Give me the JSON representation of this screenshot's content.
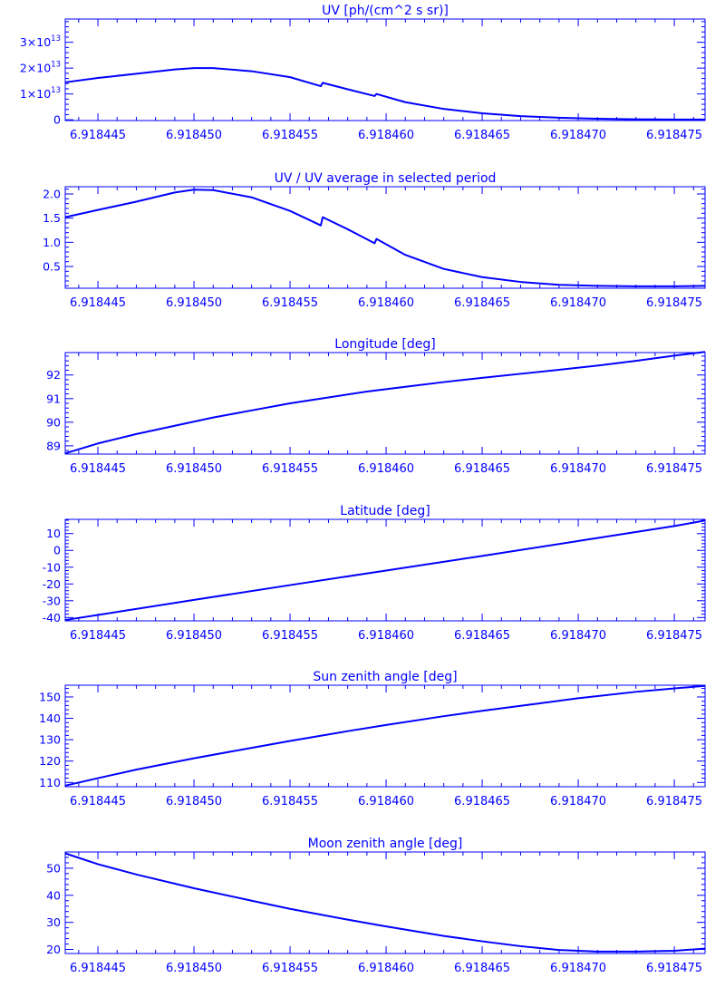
{
  "theme": {
    "color": "#0000ff",
    "background": "#ffffff"
  },
  "x_axis": {
    "range": [
      6.9184433,
      6.9184766
    ],
    "tick_labels": [
      "6.918445",
      "6.918450",
      "6.918455",
      "6.918460",
      "6.918465",
      "6.918470",
      "6.918475"
    ]
  },
  "chart_data": [
    {
      "type": "line",
      "title": "UV [ph/(cm^2 s sr)]",
      "ylim": [
        -300000000000.0,
        39000000000000.0
      ],
      "y_ticks": [
        0,
        10000000000000.0,
        20000000000000.0,
        30000000000000.0
      ],
      "y_tick_labels": [
        {
          "mantissa": "0",
          "exp": ""
        },
        {
          "mantissa": "1×10",
          "exp": "13"
        },
        {
          "mantissa": "2×10",
          "exp": "13"
        },
        {
          "mantissa": "3×10",
          "exp": "13"
        }
      ],
      "series": [
        {
          "x": [
            6.9184433,
            6.918445,
            6.918447,
            6.918449,
            6.91845,
            6.918451,
            6.918453,
            6.918455,
            6.9184566,
            6.9184567,
            6.918458,
            6.9184594,
            6.9184595,
            6.918461,
            6.918463,
            6.918465,
            6.918467,
            6.918469,
            6.918471,
            6.918473,
            6.918475,
            6.9184766
          ],
          "y": [
            14500000000000.0,
            16200000000000.0,
            17800000000000.0,
            19500000000000.0,
            20000000000000.0,
            20000000000000.0,
            18800000000000.0,
            16500000000000.0,
            13000000000000.0,
            14300000000000.0,
            11800000000000.0,
            9200000000000.0,
            10000000000000.0,
            6800000000000.0,
            4200000000000.0,
            2500000000000.0,
            1400000000000.0,
            800000000000.0,
            400000000000.0,
            200000000000.0,
            100000000000.0,
            100000000000.0
          ]
        }
      ],
      "grid": false
    },
    {
      "type": "line",
      "title": "UV / UV average in selected period",
      "ylim": [
        0.05,
        2.15
      ],
      "y_ticks": [
        0.5,
        1.0,
        1.5,
        2.0
      ],
      "y_tick_labels": [
        "0.5",
        "1.0",
        "1.5",
        "2.0"
      ],
      "series": [
        {
          "x": [
            6.9184433,
            6.918445,
            6.918447,
            6.918449,
            6.91845,
            6.918451,
            6.918453,
            6.918455,
            6.9184566,
            6.9184567,
            6.918458,
            6.9184594,
            6.9184595,
            6.918461,
            6.918463,
            6.918465,
            6.918467,
            6.918469,
            6.918471,
            6.918473,
            6.918475,
            6.9184766
          ],
          "y": [
            1.52,
            1.67,
            1.84,
            2.03,
            2.09,
            2.08,
            1.93,
            1.65,
            1.35,
            1.52,
            1.27,
            0.98,
            1.07,
            0.74,
            0.45,
            0.28,
            0.18,
            0.12,
            0.1,
            0.09,
            0.09,
            0.1
          ]
        }
      ],
      "grid": false
    },
    {
      "type": "line",
      "title": "Longitude [deg]",
      "ylim": [
        88.65,
        92.95
      ],
      "y_ticks": [
        89,
        90,
        91,
        92
      ],
      "y_tick_labels": [
        "89",
        "90",
        "91",
        "92"
      ],
      "series": [
        {
          "x": [
            6.9184433,
            6.918445,
            6.918447,
            6.918449,
            6.918451,
            6.918453,
            6.918455,
            6.918457,
            6.918459,
            6.918461,
            6.918463,
            6.918465,
            6.918467,
            6.918469,
            6.918471,
            6.918473,
            6.918475,
            6.9184766
          ],
          "y": [
            88.68,
            89.1,
            89.5,
            89.85,
            90.2,
            90.5,
            90.8,
            91.05,
            91.3,
            91.5,
            91.7,
            91.88,
            92.05,
            92.22,
            92.4,
            92.6,
            92.82,
            92.98
          ]
        }
      ],
      "grid": false
    },
    {
      "type": "line",
      "title": "Latitude [deg]",
      "ylim": [
        -42,
        18.5
      ],
      "y_ticks": [
        -40,
        -30,
        -20,
        -10,
        0,
        10
      ],
      "y_tick_labels": [
        "-40",
        "-30",
        "-20",
        "-10",
        "0",
        "10"
      ],
      "series": [
        {
          "x": [
            6.9184433,
            6.918445,
            6.91845,
            6.918455,
            6.91846,
            6.918465,
            6.91847,
            6.918475,
            6.9184766
          ],
          "y": [
            -41.5,
            -38.5,
            -29.5,
            -20.7,
            -12.0,
            -3.3,
            5.6,
            14.5,
            17.8
          ]
        }
      ],
      "grid": false
    },
    {
      "type": "line",
      "title": "Sun zenith angle [deg]",
      "ylim": [
        108,
        155.5
      ],
      "y_ticks": [
        110,
        120,
        130,
        140,
        150
      ],
      "y_tick_labels": [
        "110",
        "120",
        "130",
        "140",
        "150"
      ],
      "series": [
        {
          "x": [
            6.9184433,
            6.918445,
            6.918447,
            6.91845,
            6.918453,
            6.918455,
            6.918458,
            6.91846,
            6.918463,
            6.918465,
            6.918468,
            6.91847,
            6.918473,
            6.918475,
            6.9184766
          ],
          "y": [
            108.5,
            112.0,
            116.0,
            121.3,
            126.2,
            129.4,
            134.0,
            136.9,
            141.0,
            143.5,
            147.0,
            149.4,
            152.4,
            154.0,
            155.2
          ]
        }
      ],
      "grid": false
    },
    {
      "type": "line",
      "title": "Moon zenith angle [deg]",
      "ylim": [
        18.5,
        56
      ],
      "y_ticks": [
        20,
        30,
        40,
        50
      ],
      "y_tick_labels": [
        "20",
        "30",
        "40",
        "50"
      ],
      "series": [
        {
          "x": [
            6.9184433,
            6.918445,
            6.918447,
            6.91845,
            6.918453,
            6.918455,
            6.918458,
            6.91846,
            6.918463,
            6.918465,
            6.918467,
            6.918469,
            6.918471,
            6.918473,
            6.918475,
            6.9184766
          ],
          "y": [
            55.5,
            51.5,
            47.7,
            42.6,
            38.0,
            35.0,
            31.0,
            28.5,
            25.0,
            23.0,
            21.2,
            19.8,
            19.2,
            19.2,
            19.5,
            20.3
          ]
        }
      ],
      "grid": false
    }
  ]
}
